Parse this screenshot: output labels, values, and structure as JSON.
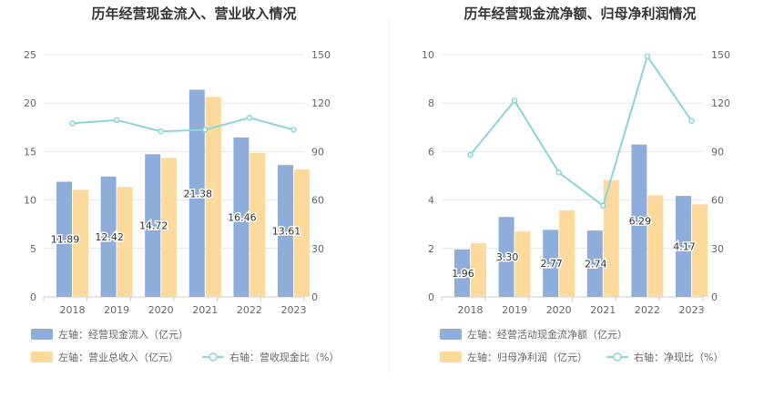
{
  "chart_data": [
    {
      "type": "bar",
      "title": "历年经营现金流入、营业收入情况",
      "categories": [
        "2018",
        "2019",
        "2020",
        "2021",
        "2022",
        "2023"
      ],
      "left_axis": {
        "ylim": [
          0,
          25
        ],
        "ticks": [
          "0",
          "5",
          "10",
          "15",
          "20",
          "25"
        ]
      },
      "right_axis": {
        "ylim": [
          0,
          150
        ],
        "ticks": [
          "0",
          "30",
          "60",
          "90",
          "120",
          "150"
        ]
      },
      "grid": true,
      "legend_position": "bottom-left",
      "series": [
        {
          "name": "左轴：经营现金流入（亿元）",
          "axis": "left",
          "kind": "bar",
          "color": "#8EADDB",
          "values": [
            11.89,
            12.42,
            14.72,
            21.38,
            16.46,
            13.61
          ],
          "labels": [
            "11.89",
            "12.42",
            "14.72",
            "21.38",
            "16.46",
            "13.61"
          ]
        },
        {
          "name": "左轴：营业总收入（亿元）",
          "axis": "left",
          "kind": "bar",
          "color": "#FDD99B",
          "values": [
            11.05,
            11.35,
            14.35,
            20.65,
            14.85,
            13.15
          ]
        },
        {
          "name": "右轴：营收现金比（%）",
          "axis": "right",
          "kind": "line",
          "color": "#8AD4DB",
          "values": [
            107.5,
            109.5,
            102.5,
            103.5,
            110.9,
            103.5
          ]
        }
      ]
    },
    {
      "type": "bar",
      "title": "历年经营现金流净额、归母净利润情况",
      "categories": [
        "2018",
        "2019",
        "2020",
        "2021",
        "2022",
        "2023"
      ],
      "left_axis": {
        "ylim": [
          0,
          10
        ],
        "ticks": [
          "0",
          "2",
          "4",
          "6",
          "8",
          "10"
        ]
      },
      "right_axis": {
        "ylim": [
          0,
          150
        ],
        "ticks": [
          "0",
          "30",
          "60",
          "90",
          "120",
          "150"
        ]
      },
      "grid": true,
      "legend_position": "bottom-left",
      "series": [
        {
          "name": "左轴：经营活动现金流净额（亿元）",
          "axis": "left",
          "kind": "bar",
          "color": "#8EADDB",
          "values": [
            1.96,
            3.3,
            2.77,
            2.74,
            6.29,
            4.17
          ],
          "labels": [
            "1.96",
            "3.30",
            "2.77",
            "2.74",
            "6.29",
            "4.17"
          ]
        },
        {
          "name": "左轴：归母净利润（亿元）",
          "axis": "left",
          "kind": "bar",
          "color": "#FDD99B",
          "values": [
            2.22,
            2.7,
            3.58,
            4.82,
            4.2,
            3.82
          ]
        },
        {
          "name": "右轴：净现比（%）",
          "axis": "right",
          "kind": "line",
          "color": "#8AD4DB",
          "values": [
            88.0,
            121.5,
            77.0,
            56.5,
            149.0,
            109.0
          ]
        }
      ]
    }
  ]
}
